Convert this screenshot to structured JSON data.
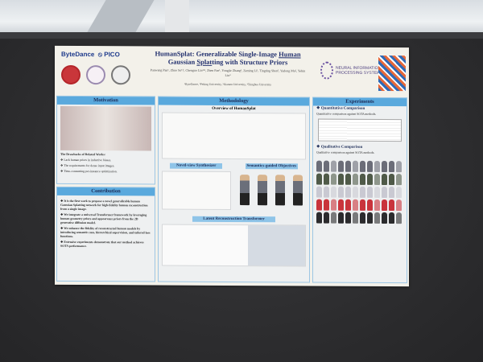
{
  "poster": {
    "logos": {
      "bytedance": "ByteDance",
      "pico": "PICO",
      "neurips": "NEURAL INFORMATION PROCESSING SYSTEMS"
    },
    "title": {
      "line1_prefix": "HumanSplat: Generalizable Single-Image ",
      "line1_link": "Human",
      "line2_link": "Splat",
      "line2_suffix": "ting with Structure Priors",
      "line2_prefix": "Gaussian "
    },
    "authors": "Panwang Pan¹, Zhuo Su¹†, Chenguo Lin¹²³, Zhen Fan¹, Yongjie Zhang¹, Zeming Li¹, Tingting Shen³, Yadong Mu², Yebin Liu⁴",
    "affiliations": "¹ByteDance, ²Peking University, ³Xiamen University, ⁴Tsinghua University",
    "motivation": {
      "heading": "Motivation",
      "drawbacks_title": "The Drawbacks of Related Works:",
      "items": [
        "Lack human priors in inductive biases.",
        "The requirements for dense input images.",
        "Time-consuming per-instance optimization."
      ]
    },
    "contribution": {
      "heading": "Contribution",
      "items": [
        "It is the first work to propose a novel generalizable human Gaussian Splatting network for high-fidelity human reconstruction from a single image.",
        "We integrate a universal Transformer framework by leveraging human geometry priors and appearance priors from the 2D generative diffusion model.",
        "We enhance the fidelity of reconstructed human models by introducing semantic cues, hierarchical supervision, and tailored loss functions.",
        "Extensive experiments demonstrate that our method achieves SOTA performance."
      ]
    },
    "methodology": {
      "heading": "Methodology",
      "overview": "Overview of HumanSplat",
      "novel_view": "Novel-view Synthesizer",
      "semantic": "Semantics-guided Objectives",
      "latent": "Latent Reconstruction Transformer"
    },
    "experiments": {
      "heading": "Experiments",
      "quant_title": "Quantitative Comparison",
      "quant_caption": "Quantitative comparison against SOTA methods.",
      "qual_title": "Qualitative Comparison",
      "qual_caption": "Qualitative comparison against SOTA methods."
    }
  }
}
